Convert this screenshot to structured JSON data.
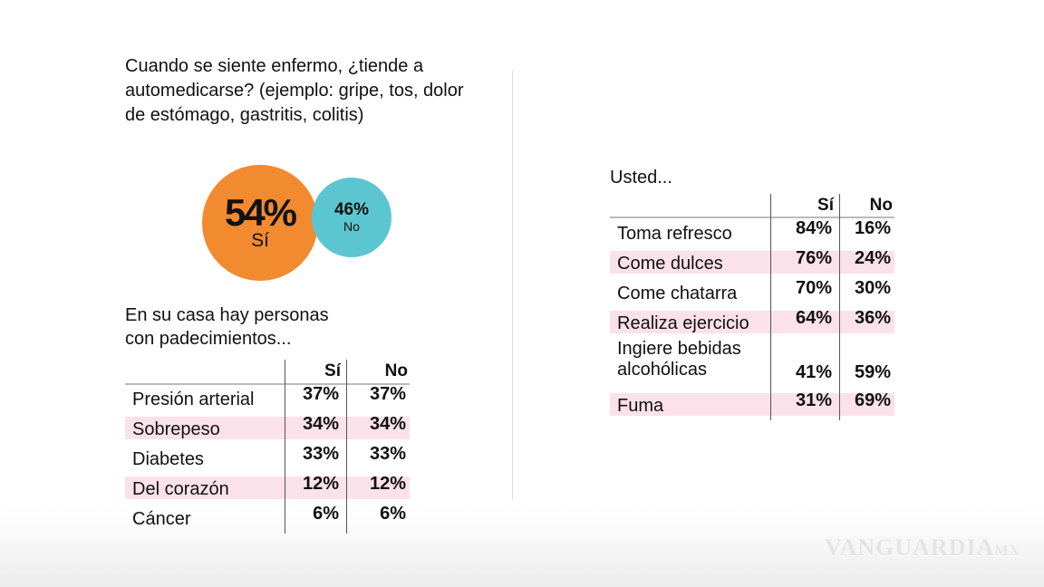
{
  "left": {
    "question": "Cuando se siente enfermo, ¿tiende a automedicarse? (ejemplo: gripe, tos, dolor de estómago, gastritis, colitis)",
    "subtitle": "En su casa hay personas con padecimientos..."
  },
  "right": {
    "subtitle": "Usted..."
  },
  "colors": {
    "si": "#f28a30",
    "no": "#5bc6d0",
    "row_highlight": "#fbe2ea"
  },
  "watermark": "VANGUARDIA MX",
  "chart_data": [
    {
      "type": "bubble",
      "categories": [
        "Sí",
        "No"
      ],
      "values": [
        54,
        46
      ],
      "labels": [
        "54%",
        "46%"
      ]
    },
    {
      "type": "table",
      "columns": [
        "Sí",
        "No"
      ],
      "rows": [
        {
          "label": "Presión arterial",
          "si": "37%",
          "no": "37%"
        },
        {
          "label": "Sobrepeso",
          "si": "34%",
          "no": "34%"
        },
        {
          "label": "Diabetes",
          "si": "33%",
          "no": "33%"
        },
        {
          "label": "Del corazón",
          "si": "12%",
          "no": "12%"
        },
        {
          "label": "Cáncer",
          "si": "6%",
          "no": "6%"
        }
      ]
    },
    {
      "type": "table",
      "columns": [
        "Sí",
        "No"
      ],
      "rows": [
        {
          "label": "Toma refresco",
          "si": "84%",
          "no": "16%"
        },
        {
          "label": "Come dulces",
          "si": "76%",
          "no": "24%"
        },
        {
          "label": "Come chatarra",
          "si": "70%",
          "no": "30%"
        },
        {
          "label": "Realiza ejercicio",
          "si": "64%",
          "no": "36%"
        },
        {
          "label": "Ingiere bebidas alcohólicas",
          "si": "41%",
          "no": "59%"
        },
        {
          "label": "Fuma",
          "si": "31%",
          "no": "69%"
        }
      ]
    }
  ]
}
